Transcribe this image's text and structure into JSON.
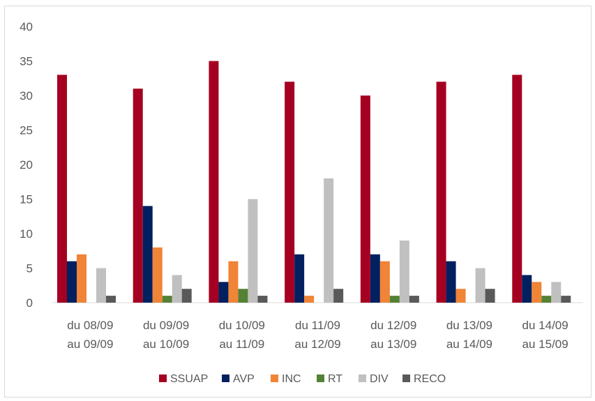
{
  "chart_data": {
    "type": "bar",
    "title": "",
    "xlabel": "",
    "ylabel": "",
    "ylim": [
      0,
      40
    ],
    "yticks": [
      0,
      5,
      10,
      15,
      20,
      25,
      30,
      35,
      40
    ],
    "grid": false,
    "legend_position": "bottom",
    "categories": [
      [
        "du 08/09",
        "au 09/09"
      ],
      [
        "du 09/09",
        "au 10/09"
      ],
      [
        "du 10/09",
        "au 11/09"
      ],
      [
        "du 11/09",
        "au 12/09"
      ],
      [
        "du 12/09",
        "au 13/09"
      ],
      [
        "du 13/09",
        "au 14/09"
      ],
      [
        "du 14/09",
        "au 15/09"
      ]
    ],
    "series": [
      {
        "name": "SSUAP",
        "color": "#A50021",
        "values": [
          33,
          31,
          35,
          32,
          30,
          32,
          33
        ]
      },
      {
        "name": "AVP",
        "color": "#002060",
        "values": [
          6,
          14,
          3,
          7,
          7,
          6,
          4
        ]
      },
      {
        "name": "INC",
        "color": "#F08437",
        "values": [
          7,
          8,
          6,
          1,
          6,
          2,
          3
        ]
      },
      {
        "name": "RT",
        "color": "#548235",
        "values": [
          0,
          1,
          2,
          0,
          1,
          0,
          1
        ]
      },
      {
        "name": "DIV",
        "color": "#C0C0C0",
        "values": [
          5,
          4,
          15,
          18,
          9,
          5,
          3
        ]
      },
      {
        "name": "RECO",
        "color": "#595959",
        "values": [
          1,
          2,
          1,
          2,
          1,
          2,
          1
        ]
      }
    ]
  }
}
